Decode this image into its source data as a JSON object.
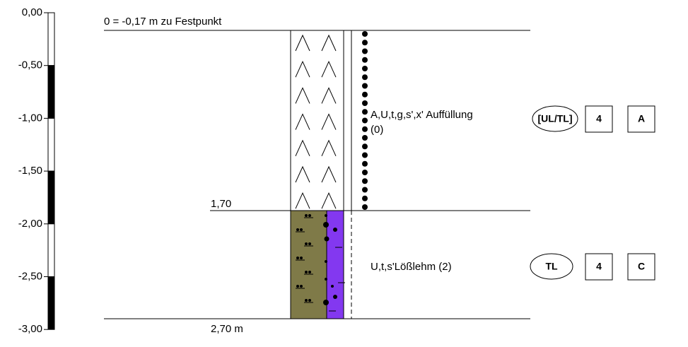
{
  "scale": {
    "ticks": [
      "0,00",
      "-0,50",
      "-1,00",
      "-1,50",
      "-2,00",
      "-2,50",
      "-3,00"
    ]
  },
  "profile": {
    "reference": "0 = -0,17 m zu Festpunkt",
    "layers": [
      {
        "depth_label": "1,70",
        "description": "A,U,t,g,s',x' Auffüllung",
        "note": "(0)",
        "soil_group": "[UL/TL]",
        "class": "4",
        "code": "A"
      },
      {
        "depth_label": "2,70 m",
        "description": "U,t,s'Lößlehm (2)",
        "soil_group": "TL",
        "class": "4",
        "code": "C"
      }
    ]
  }
}
